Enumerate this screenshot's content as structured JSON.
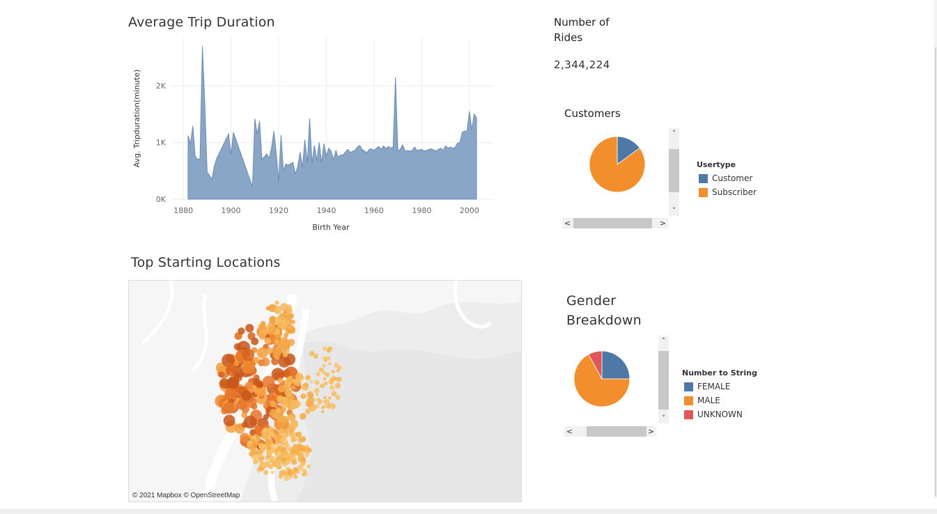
{
  "trip_chart": {
    "title": "Average Trip Duration",
    "chart_data": {
      "type": "area",
      "title": "Average Trip Duration",
      "xlabel": "Birth Year",
      "ylabel": "Avg. Tripduration(minute)",
      "x_ticks": [
        "1880",
        "1900",
        "1920",
        "1940",
        "1960",
        "1980",
        "2000"
      ],
      "y_ticks": [
        "0K",
        "1K",
        "2K"
      ],
      "xlim": [
        1875,
        2010
      ],
      "ylim": [
        0,
        2850
      ],
      "grid": true,
      "color": "#7c9bbf",
      "x": [
        1882,
        1883,
        1884,
        1885,
        1886,
        1887,
        1888,
        1889,
        1890,
        1891,
        1892,
        1893,
        1894,
        1899,
        1900,
        1901,
        1909,
        1910,
        1911,
        1912,
        1913,
        1915,
        1916,
        1917,
        1918,
        1919,
        1920,
        1921,
        1922,
        1923,
        1924,
        1926,
        1927,
        1928,
        1929,
        1930,
        1931,
        1932,
        1933,
        1934,
        1935,
        1936,
        1937,
        1938,
        1939,
        1940,
        1941,
        1942,
        1943,
        1944,
        1945,
        1946,
        1947,
        1948,
        1949,
        1950,
        1951,
        1952,
        1953,
        1954,
        1955,
        1956,
        1957,
        1958,
        1959,
        1960,
        1961,
        1962,
        1963,
        1964,
        1965,
        1966,
        1967,
        1968,
        1969,
        1970,
        1971,
        1972,
        1973,
        1974,
        1975,
        1976,
        1977,
        1978,
        1979,
        1980,
        1981,
        1982,
        1983,
        1984,
        1985,
        1986,
        1987,
        1988,
        1989,
        1990,
        1991,
        1992,
        1993,
        1994,
        1995,
        1996,
        1997,
        1998,
        1999,
        2000,
        2001,
        2002,
        2003
      ],
      "y": [
        1120,
        980,
        1290,
        760,
        700,
        720,
        2700,
        1720,
        480,
        420,
        350,
        580,
        720,
        1150,
        780,
        1180,
        220,
        1420,
        1150,
        1380,
        700,
        800,
        720,
        900,
        1200,
        800,
        310,
        1130,
        500,
        620,
        600,
        650,
        440,
        580,
        830,
        560,
        1050,
        640,
        1420,
        630,
        950,
        680,
        1000,
        640,
        980,
        760,
        900,
        850,
        690,
        860,
        740,
        780,
        780,
        830,
        880,
        820,
        850,
        860,
        920,
        950,
        880,
        850,
        820,
        880,
        890,
        860,
        900,
        930,
        880,
        940,
        890,
        930,
        900,
        920,
        2150,
        850,
        880,
        960,
        850,
        860,
        850,
        860,
        920,
        860,
        870,
        880,
        850,
        860,
        880,
        890,
        870,
        850,
        880,
        900,
        860,
        940,
        900,
        920,
        900,
        910,
        990,
        1000,
        1180,
        1200,
        1200,
        1550,
        1220,
        1500,
        1440
      ]
    }
  },
  "rides": {
    "title": "Number of Rides",
    "value": "2,344,224"
  },
  "customers": {
    "title": "Customers",
    "legend_title": "Usertype",
    "chart_data": {
      "type": "pie",
      "categories": [
        "Customer",
        "Subscriber"
      ],
      "values": [
        0.15,
        0.85
      ],
      "colors": [
        "#4e79a7",
        "#f28e2b"
      ]
    }
  },
  "locations": {
    "title": "Top Starting Locations",
    "attribution": "© 2021 Mapbox © OpenStreetMap"
  },
  "gender": {
    "title": "Gender Breakdown",
    "legend_title": "Number to String",
    "chart_data": {
      "type": "pie",
      "categories": [
        "FEMALE",
        "MALE",
        "UNKNOWN"
      ],
      "values": [
        0.25,
        0.67,
        0.08
      ],
      "colors": [
        "#4e79a7",
        "#f28e2b",
        "#e15759"
      ]
    }
  },
  "scroll": {
    "left": "<",
    "right": ">",
    "up": "˄",
    "down": "˅"
  }
}
